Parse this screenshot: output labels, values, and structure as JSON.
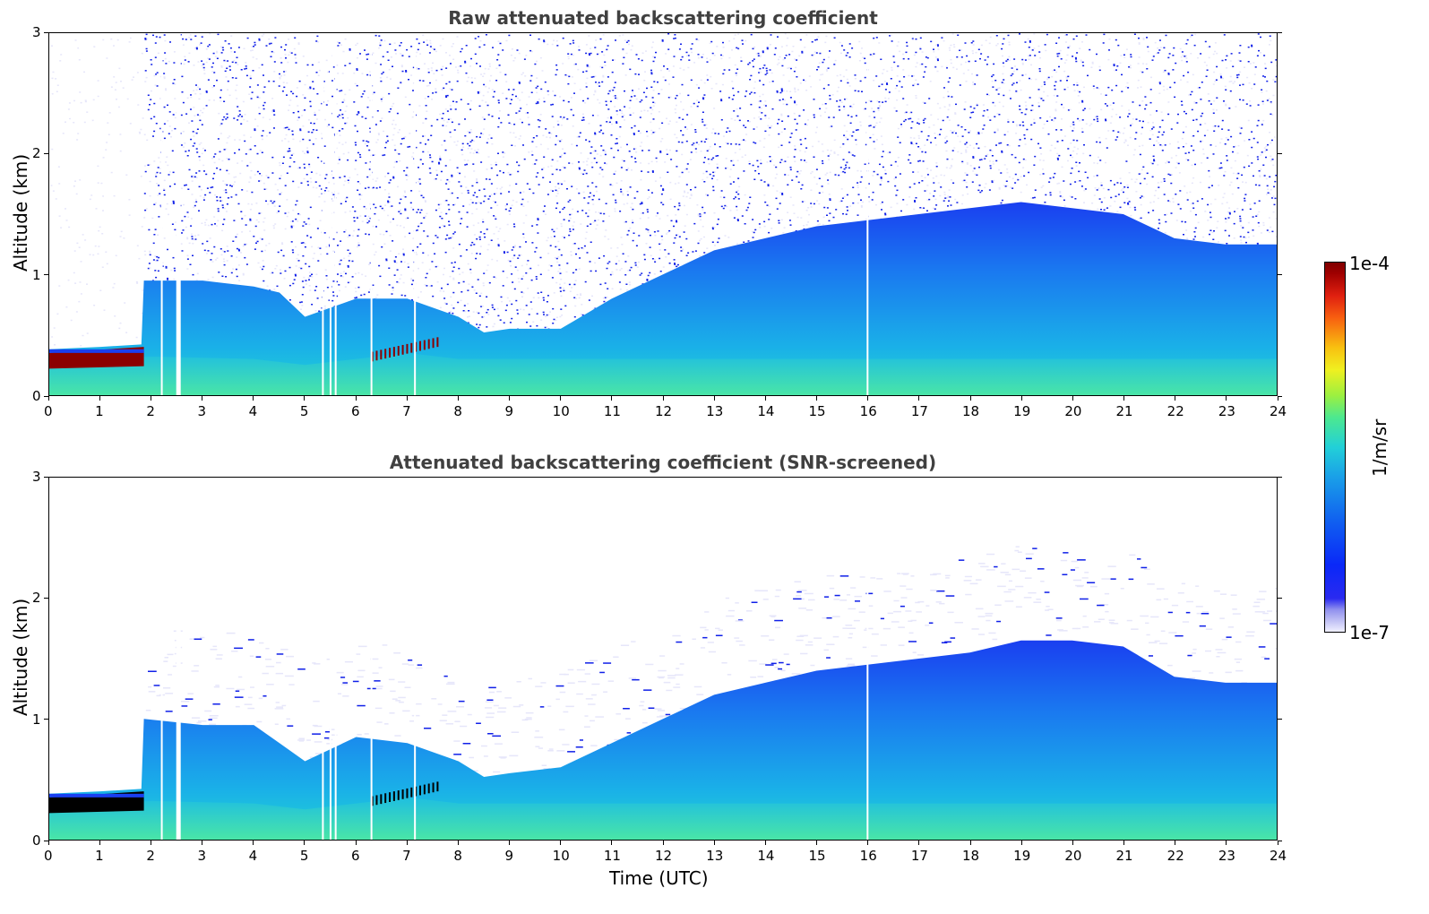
{
  "chart_data": [
    {
      "type": "heatmap",
      "title": "Raw attenuated backscattering coefficient",
      "xlabel": "",
      "ylabel": "Altitude (km)",
      "xlim": [
        0,
        24
      ],
      "ylim": [
        0,
        3
      ],
      "xticks": [
        0,
        1,
        2,
        3,
        4,
        5,
        6,
        7,
        8,
        9,
        10,
        11,
        12,
        13,
        14,
        15,
        16,
        17,
        18,
        19,
        20,
        21,
        22,
        23,
        24
      ],
      "yticks": [
        0,
        1,
        2,
        3
      ],
      "boundary_layer_top_km": [
        [
          0,
          0.38
        ],
        [
          1,
          0.4
        ],
        [
          1.8,
          0.42
        ],
        [
          1.85,
          0.95
        ],
        [
          3,
          0.95
        ],
        [
          4,
          0.9
        ],
        [
          4.5,
          0.85
        ],
        [
          5,
          0.65
        ],
        [
          6,
          0.8
        ],
        [
          7,
          0.8
        ],
        [
          8,
          0.65
        ],
        [
          8.5,
          0.52
        ],
        [
          9,
          0.55
        ],
        [
          10,
          0.55
        ],
        [
          11,
          0.8
        ],
        [
          12,
          1.0
        ],
        [
          13,
          1.2
        ],
        [
          14,
          1.3
        ],
        [
          15,
          1.4
        ],
        [
          16,
          1.45
        ],
        [
          17,
          1.5
        ],
        [
          18,
          1.55
        ],
        [
          19,
          1.6
        ],
        [
          20,
          1.55
        ],
        [
          21,
          1.5
        ],
        [
          22,
          1.3
        ],
        [
          23,
          1.25
        ],
        [
          24,
          1.25
        ]
      ],
      "aerosol_core_top_km": [
        [
          0,
          0.28
        ],
        [
          2,
          0.32
        ],
        [
          4,
          0.3
        ],
        [
          5,
          0.25
        ],
        [
          6,
          0.3
        ],
        [
          7,
          0.35
        ],
        [
          8,
          0.3
        ],
        [
          24,
          0.3
        ]
      ],
      "data_gaps_utc": [
        2.2,
        2.5,
        5.35,
        5.5,
        5.6,
        6.3,
        7.15,
        16.0
      ],
      "colorbar": {
        "min_label": "1e-7",
        "max_label": "1e-4",
        "unit": "1/m/sr",
        "scale": "log"
      }
    },
    {
      "type": "heatmap",
      "title": "Attenuated backscattering coefficient (SNR-screened)",
      "xlabel": "Time (UTC)",
      "ylabel": "Altitude (km)",
      "xlim": [
        0,
        24
      ],
      "ylim": [
        0,
        3
      ],
      "xticks": [
        0,
        1,
        2,
        3,
        4,
        5,
        6,
        7,
        8,
        9,
        10,
        11,
        12,
        13,
        14,
        15,
        16,
        17,
        18,
        19,
        20,
        21,
        22,
        23,
        24
      ],
      "yticks": [
        0,
        1,
        2,
        3
      ],
      "boundary_layer_top_km": [
        [
          0,
          0.38
        ],
        [
          1,
          0.4
        ],
        [
          1.8,
          0.42
        ],
        [
          1.85,
          1.0
        ],
        [
          3,
          0.95
        ],
        [
          4,
          0.95
        ],
        [
          4.5,
          0.8
        ],
        [
          5,
          0.65
        ],
        [
          6,
          0.85
        ],
        [
          7,
          0.8
        ],
        [
          8,
          0.65
        ],
        [
          8.5,
          0.52
        ],
        [
          9,
          0.55
        ],
        [
          10,
          0.6
        ],
        [
          11,
          0.8
        ],
        [
          12,
          1.0
        ],
        [
          13,
          1.2
        ],
        [
          14,
          1.3
        ],
        [
          15,
          1.4
        ],
        [
          16,
          1.45
        ],
        [
          17,
          1.5
        ],
        [
          18,
          1.55
        ],
        [
          19,
          1.65
        ],
        [
          20,
          1.65
        ],
        [
          21,
          1.6
        ],
        [
          22,
          1.35
        ],
        [
          23,
          1.3
        ],
        [
          24,
          1.3
        ]
      ],
      "aerosol_core_top_km": [
        [
          0,
          0.28
        ],
        [
          2,
          0.32
        ],
        [
          4,
          0.3
        ],
        [
          5,
          0.25
        ],
        [
          6,
          0.3
        ],
        [
          7,
          0.35
        ],
        [
          8,
          0.3
        ],
        [
          24,
          0.3
        ]
      ],
      "data_gaps_utc": [
        2.2,
        2.5,
        5.35,
        5.5,
        5.6,
        6.3,
        7.15,
        16.0
      ]
    }
  ],
  "colorbar": {
    "max_label": "1e-4",
    "min_label": "1e-7",
    "unit_label": "1/m/sr"
  },
  "colors": {
    "clear_air": "#e6e6fa",
    "noise_blue": "#1020e8",
    "bl_blue": "#1a6cf0",
    "surface_cyan": "#1ec8e0",
    "peak_red": "#8b0000",
    "screened_black": "#000000"
  }
}
